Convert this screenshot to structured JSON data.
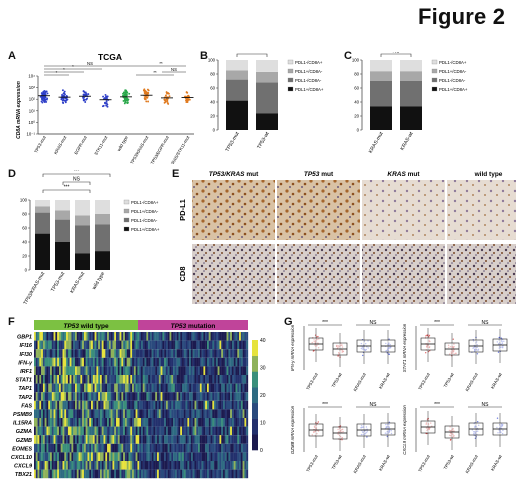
{
  "figure_title": "Figure 2",
  "panels": {
    "A": {
      "label": "A",
      "title": "TCGA",
      "ylabel": "CD8A mRNA expression",
      "yticks": [
        "10⁴",
        "10³",
        "10²",
        "10¹",
        "10⁰",
        "10⁻¹"
      ],
      "groups": [
        "TP53-mut",
        "KRAS-mut",
        "EGFR-mut",
        "STK11-mut",
        "wild type",
        "TP53/KRAS-mut",
        "TP53/EGFR-mut",
        "KRAS/STK11-mut"
      ],
      "colors": [
        "#2e3fc8",
        "#2e3fc8",
        "#2e3fc8",
        "#2e3fc8",
        "#2aa84a",
        "#e07a1f",
        "#e07a1f",
        "#e07a1f"
      ],
      "sig": [
        {
          "text": "NS"
        },
        {
          "text": "*"
        },
        {
          "text": "*"
        },
        {
          "text": "*"
        },
        {
          "text": "**"
        },
        {
          "text": "NS"
        },
        {
          "text": "**"
        }
      ]
    },
    "B": {
      "label": "B",
      "sig": "*",
      "categories": [
        "TP53-mut",
        "TP53-wt"
      ],
      "legend": [
        "PDL1-/CD8A+",
        "PDL1+/CD8A-",
        "PDL1-/CD8A-",
        "PDL1+/CD8A+"
      ],
      "yticks": [
        "100",
        "80",
        "60",
        "40",
        "20",
        "0"
      ]
    },
    "C": {
      "label": "C",
      "sig": "NS",
      "categories": [
        "KRAS-mut",
        "KRAS-wt"
      ],
      "legend": [
        "PDL1-/CD8A+",
        "PDL1+/CD8A-",
        "PDL1-/CD8A-",
        "PDL1+/CD8A+"
      ],
      "yticks": [
        "100",
        "80",
        "60",
        "40",
        "20",
        "0"
      ]
    },
    "D": {
      "label": "D",
      "sig": [
        "***",
        "NS",
        "***"
      ],
      "categories": [
        "TP53/KRAS-mut",
        "TP53-mut",
        "KRAS-mut",
        "wild type"
      ],
      "legend": [
        "PDL1-/CD8A+",
        "PDL1+/CD8A-",
        "PDL1-/CD8A-",
        "PDL1+/CD8A+"
      ],
      "yticks": [
        "100",
        "80",
        "60",
        "40",
        "20",
        "0"
      ]
    },
    "E": {
      "label": "E",
      "columns": [
        {
          "prefix": "TP53/KRAS",
          "suffix": " mut"
        },
        {
          "prefix": "TP53",
          "suffix": " mut"
        },
        {
          "prefix": "KRAS",
          "suffix": " mut"
        },
        {
          "prefix": "",
          "suffix": "wild type"
        }
      ],
      "rows": [
        "PD-L1",
        "CD8"
      ]
    },
    "F": {
      "label": "F",
      "groups": [
        {
          "prefix": "TP53",
          "suffix": " wild type",
          "color": "#7cc142"
        },
        {
          "prefix": "TP53",
          "suffix": " mutation",
          "color": "#c0449a"
        }
      ],
      "genes": [
        "GBP1",
        "IFI16",
        "IFI30",
        "IFN-γ",
        "IRF1",
        "STAT1",
        "TAP1",
        "TAP2",
        "FAS",
        "PSMB9",
        "IL15RA",
        "GZMA",
        "GZMB",
        "EOMES",
        "CXCL10",
        "CXCL9",
        "TBX21"
      ],
      "colorbar_ticks": [
        "40",
        "30",
        "20",
        "10",
        "0"
      ]
    },
    "G": {
      "label": "G",
      "subplots": [
        {
          "ylabel": "IFN-γ mRNA expression",
          "sig": [
            "***",
            "NS"
          ]
        },
        {
          "ylabel": "STAT1 mRNA expression",
          "sig": [
            "***",
            "NS"
          ]
        },
        {
          "ylabel": "GZMB mRNA expression",
          "sig": [
            "***",
            "NS"
          ]
        },
        {
          "ylabel": "CXCL9 mRNA expression",
          "sig": [
            "***",
            "NS"
          ]
        }
      ],
      "categories": [
        "TP53-mut",
        "TP53-wt",
        "KRAS-mut",
        "KRAS-wt"
      ]
    }
  },
  "chart_data": [
    {
      "type": "scatter",
      "panel": "A",
      "title": "TCGA",
      "ylabel": "CD8A mRNA expression",
      "yscale": "log",
      "categories": [
        "TP53-mut",
        "KRAS-mut",
        "EGFR-mut",
        "STK11-mut",
        "wild type",
        "TP53/KRAS-mut",
        "TP53/EGFR-mut",
        "KRAS/STK11-mut"
      ],
      "medians": [
        200,
        150,
        180,
        90,
        160,
        220,
        130,
        140
      ]
    },
    {
      "type": "bar",
      "panel": "B",
      "stacked": true,
      "categories": [
        "TP53-mut",
        "TP53-wt"
      ],
      "ylim": [
        0,
        100
      ],
      "series": [
        {
          "name": "PDL1+/CD8A+",
          "values": [
            42,
            24
          ]
        },
        {
          "name": "PDL1-/CD8A-",
          "values": [
            30,
            44
          ]
        },
        {
          "name": "PDL1+/CD8A-",
          "values": [
            13,
            15
          ]
        },
        {
          "name": "PDL1-/CD8A+",
          "values": [
            15,
            17
          ]
        }
      ]
    },
    {
      "type": "bar",
      "panel": "C",
      "stacked": true,
      "categories": [
        "KRAS-mut",
        "KRAS-wt"
      ],
      "ylim": [
        0,
        100
      ],
      "series": [
        {
          "name": "PDL1+/CD8A+",
          "values": [
            34,
            34
          ]
        },
        {
          "name": "PDL1-/CD8A-",
          "values": [
            36,
            36
          ]
        },
        {
          "name": "PDL1+/CD8A-",
          "values": [
            14,
            14
          ]
        },
        {
          "name": "PDL1-/CD8A+",
          "values": [
            16,
            16
          ]
        }
      ]
    },
    {
      "type": "bar",
      "panel": "D",
      "stacked": true,
      "categories": [
        "TP53/KRAS-mut",
        "TP53-mut",
        "KRAS-mut",
        "wild type"
      ],
      "ylim": [
        0,
        100
      ],
      "series": [
        {
          "name": "PDL1+/CD8A+",
          "values": [
            52,
            40,
            24,
            27
          ]
        },
        {
          "name": "PDL1-/CD8A-",
          "values": [
            30,
            32,
            40,
            38
          ]
        },
        {
          "name": "PDL1+/CD8A-",
          "values": [
            9,
            13,
            14,
            15
          ]
        },
        {
          "name": "PDL1-/CD8A+",
          "values": [
            9,
            15,
            22,
            20
          ]
        }
      ]
    },
    {
      "type": "heatmap",
      "panel": "F",
      "rows": [
        "GBP1",
        "IFI16",
        "IFI30",
        "IFN-γ",
        "IRF1",
        "STAT1",
        "TAP1",
        "TAP2",
        "FAS",
        "PSMB9",
        "IL15RA",
        "GZMA",
        "GZMB",
        "EOMES",
        "CXCL10",
        "CXCL9",
        "TBX21"
      ],
      "columns": [
        "TP53 wild type",
        "TP53 mutation"
      ],
      "colorbar_range": [
        0,
        40
      ]
    },
    {
      "type": "box",
      "panel": "G",
      "categories": [
        "TP53-mut",
        "TP53-wt",
        "KRAS-mut",
        "KRAS-wt"
      ],
      "yscale": "log",
      "subplots": [
        "IFN-γ",
        "STAT1",
        "GZMB",
        "CXCL9"
      ]
    }
  ]
}
